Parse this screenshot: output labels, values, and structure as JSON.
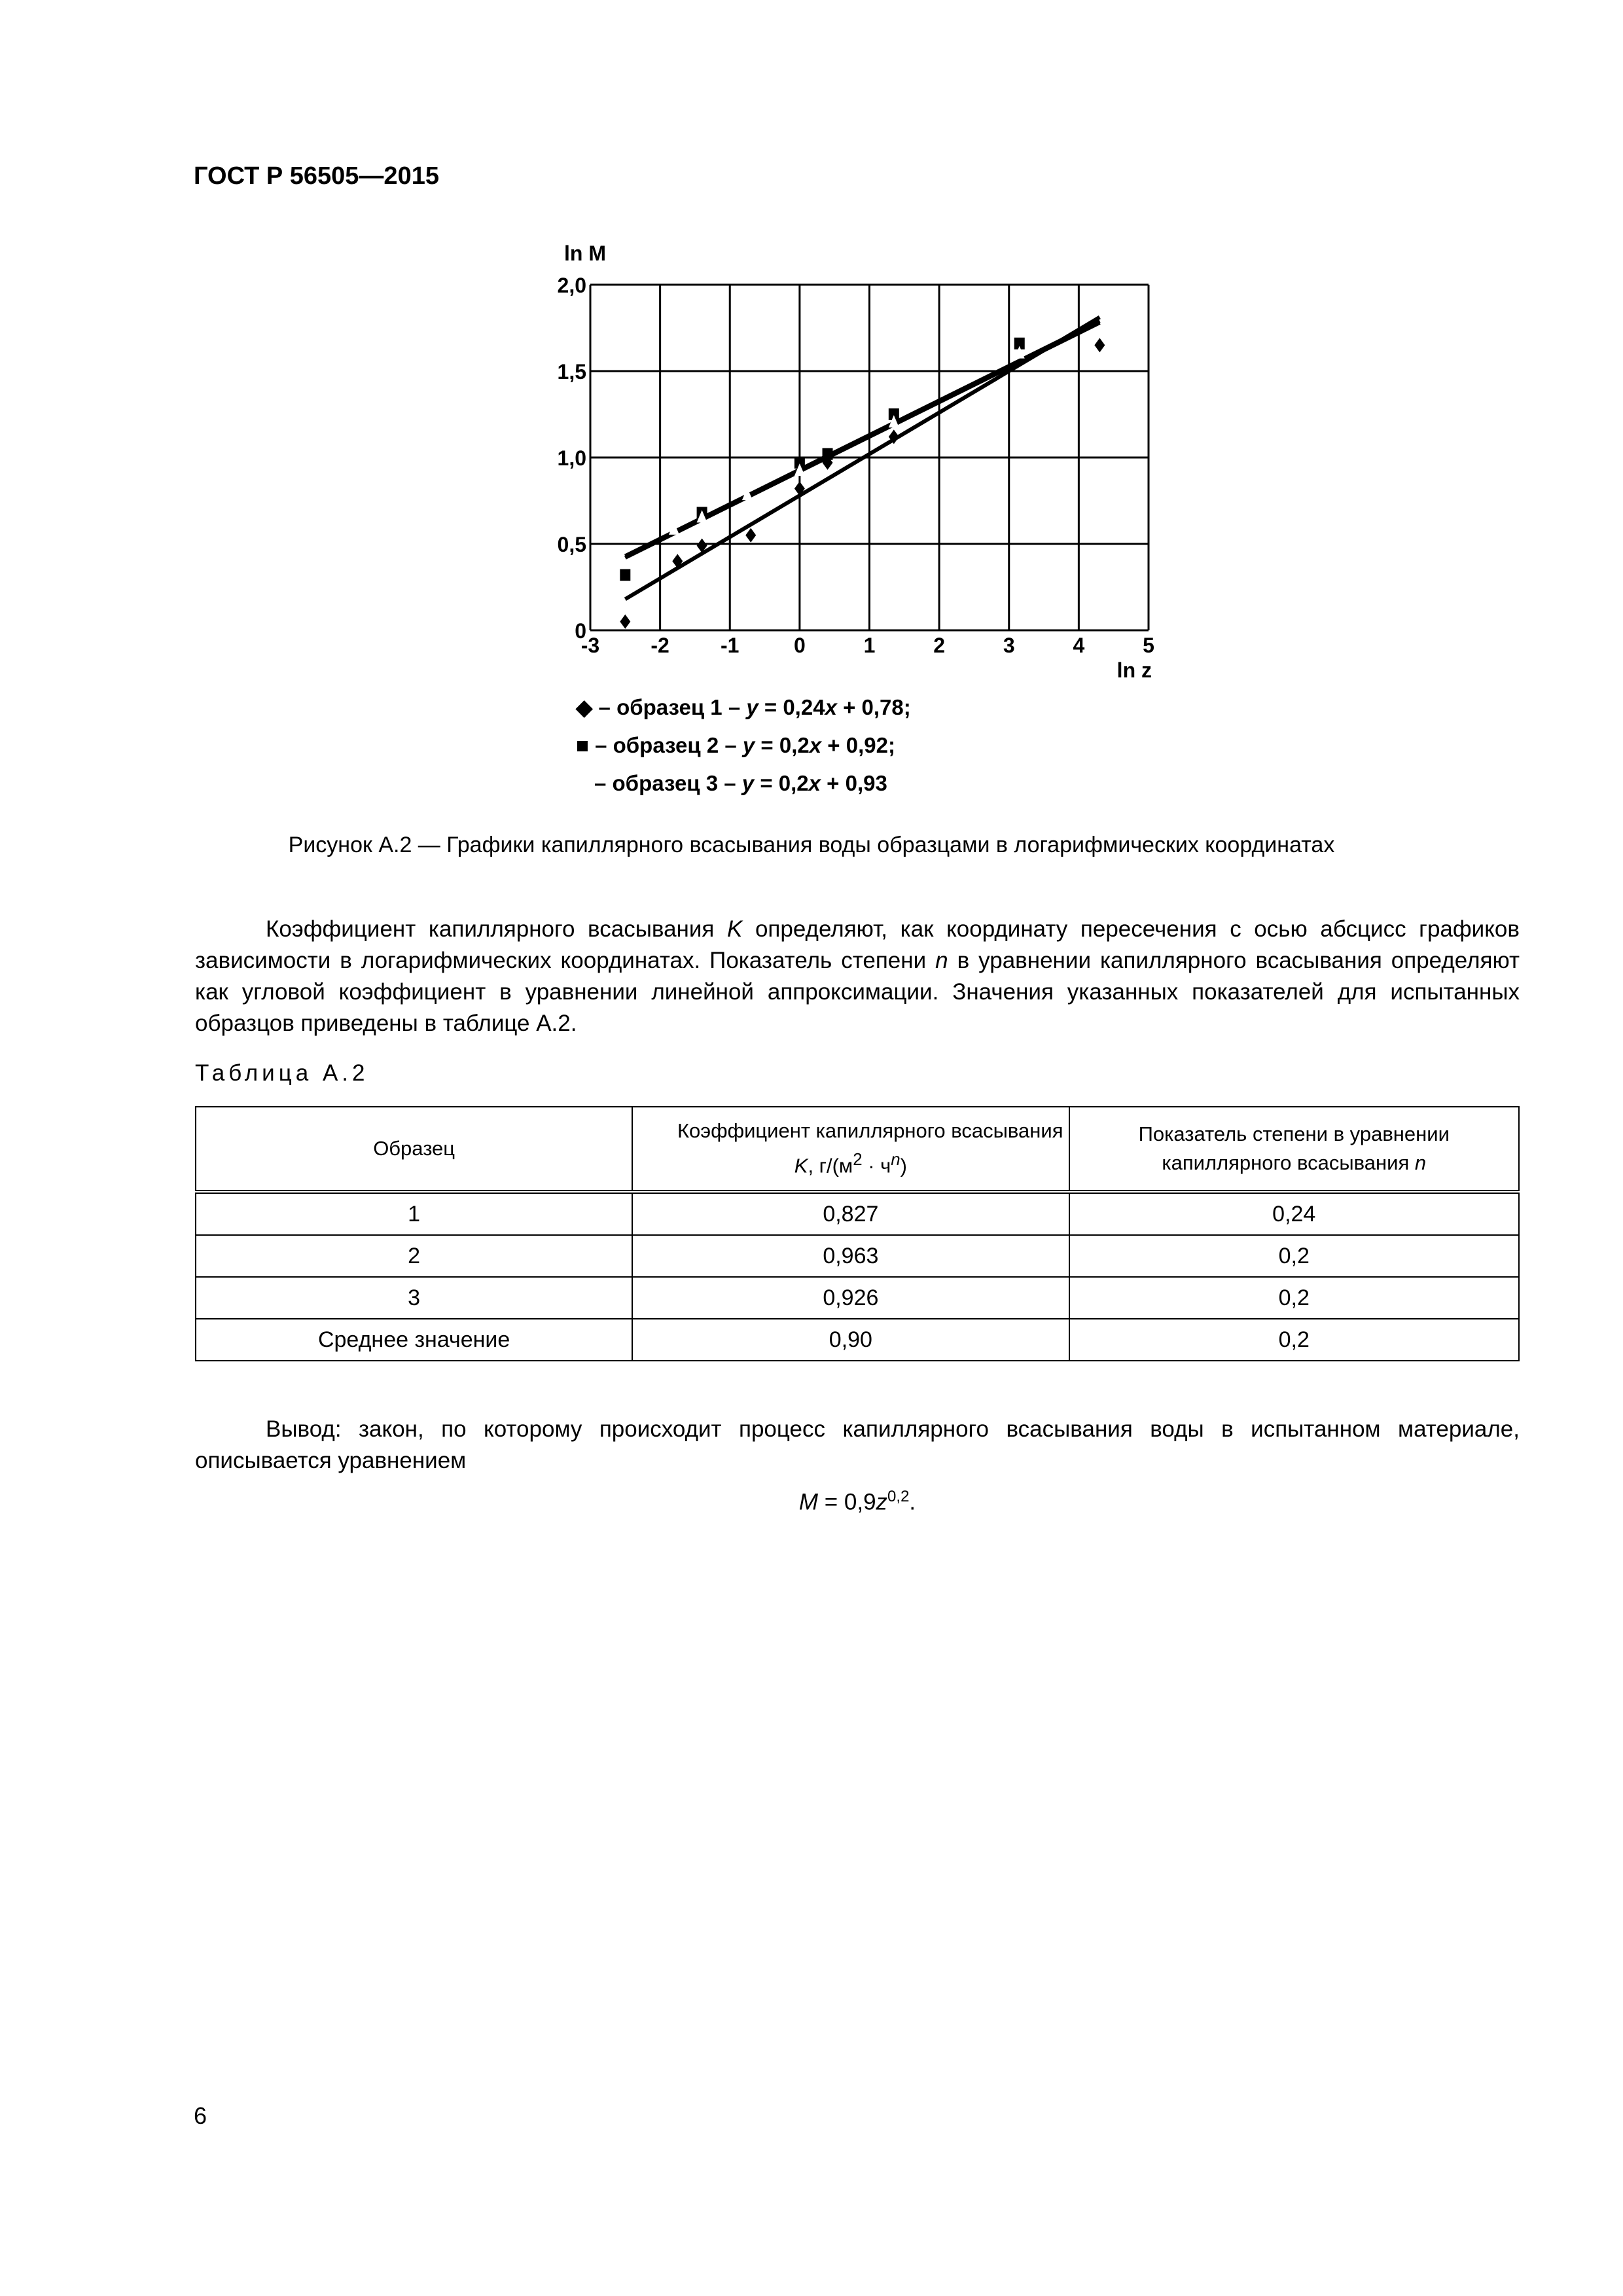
{
  "header": {
    "doc_id": "ГОСТ Р 56505—2015"
  },
  "chart_data": {
    "type": "scatter",
    "ylabel": "ln M",
    "xlabel": "ln z",
    "xlim": [
      -3,
      5
    ],
    "ylim": [
      0,
      2.0
    ],
    "xticks": [
      "-3",
      "-2",
      "-1",
      "0",
      "1",
      "2",
      "3",
      "4",
      "5"
    ],
    "yticks": [
      "0",
      "0,5",
      "1,0",
      "1,5",
      "2,0"
    ],
    "grid": true,
    "series": [
      {
        "name": "образец 1",
        "marker": "diamond",
        "fit": {
          "slope": 0.24,
          "intercept": 0.78
        },
        "points": [
          [
            -2.5,
            0.05
          ],
          [
            -1.75,
            0.4
          ],
          [
            -1.4,
            0.49
          ],
          [
            -0.7,
            0.55
          ],
          [
            0,
            0.82
          ],
          [
            0.4,
            0.97
          ],
          [
            1.35,
            1.12
          ],
          [
            4.3,
            1.65
          ]
        ]
      },
      {
        "name": "образец 2",
        "marker": "square",
        "fit": {
          "slope": 0.2,
          "intercept": 0.92
        },
        "points": [
          [
            -2.5,
            0.32
          ],
          [
            -1.4,
            0.68
          ],
          [
            0,
            0.97
          ],
          [
            0.4,
            1.02
          ],
          [
            1.35,
            1.25
          ],
          [
            3.15,
            1.66
          ]
        ]
      },
      {
        "name": "образец 3",
        "marker": "none",
        "fit": {
          "slope": 0.2,
          "intercept": 0.93
        },
        "points": [
          [
            -1.8,
            0.58
          ],
          [
            -1.4,
            0.65
          ],
          [
            -0.75,
            0.78
          ],
          [
            0,
            0.92
          ],
          [
            1.35,
            1.2
          ],
          [
            3.15,
            1.6
          ]
        ]
      }
    ]
  },
  "legend": [
    {
      "symbol": "◆",
      "text": " – образец 1 – ",
      "eq_y": "y",
      "eq_mid": " = 0,24",
      "eq_x": "x",
      "eq_end": " + 0,78;"
    },
    {
      "symbol": "■",
      "text": " – образец 2 – ",
      "eq_y": "y",
      "eq_mid": " = 0,2",
      "eq_x": "x",
      "eq_end": " + 0,92;"
    },
    {
      "symbol": "",
      "text": " – образец 3 – ",
      "eq_y": "y",
      "eq_mid": " = 0,2",
      "eq_x": "x",
      "eq_end": " + 0,93"
    }
  ],
  "caption": "Рисунок А.2 — Графики капиллярного всасывания воды образцами в логарифмических координатах",
  "paragraph": {
    "p1": "Коэффициент капиллярного всасывания ",
    "K": "K",
    "p2": " определяют, как координату пересечения с осью абсцисс графиков зависимости в логарифмических координатах. Показатель степени ",
    "n": "n",
    "p3": " в уравнении капиллярного всасывания определяют как угловой коэффициент в уравнении линейной аппроксимации. Значения указанных показателей для испытанных образцов приведены в таблице А.2."
  },
  "table": {
    "caption": "Таблица А.2",
    "headers": {
      "c1": "Образец",
      "c2_line1": "Коэффициент капиллярного всасывания",
      "c2_K": "K",
      "c2_unit_a": ", г/(м",
      "c2_sup2": "2",
      "c2_unit_b": " · ч",
      "c2_supn": "n",
      "c2_unit_c": ")",
      "c3_line1": "Показатель степени в уравнении",
      "c3_line2": "капиллярного всасывания ",
      "c3_n": "n"
    },
    "rows": [
      [
        "1",
        "0,827",
        "0,24"
      ],
      [
        "2",
        "0,963",
        "0,2"
      ],
      [
        "3",
        "0,926",
        "0,2"
      ],
      [
        "Среднее значение",
        "0,90",
        "0,2"
      ]
    ]
  },
  "conclusion": "Вывод:  закон, по которому происходит процесс капиллярного всасывания воды в испытанном материале, описывается уравнением",
  "formula": {
    "M": "M",
    "eq": " = 0,9",
    "z": "z",
    "exp": "0,2",
    "end": "."
  },
  "page_number": "6"
}
